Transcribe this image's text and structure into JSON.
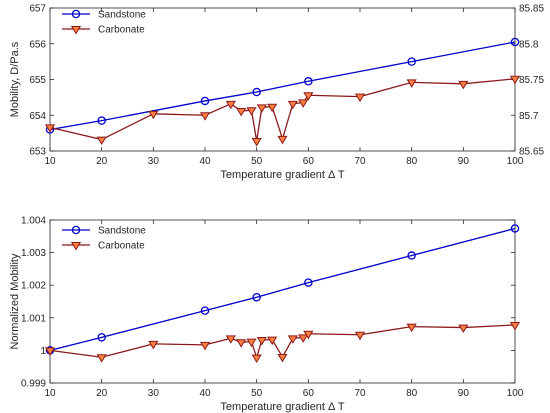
{
  "chart_data": [
    {
      "type": "line",
      "title": "",
      "xlabel": "Temperature gradient Δ T",
      "ylabel": "Mobility, D/Pa.s",
      "xlim": [
        10,
        100
      ],
      "ylim": [
        653,
        657
      ],
      "y2lim": [
        85.65,
        85.85
      ],
      "xticks": [
        "10",
        "20",
        "30",
        "40",
        "50",
        "60",
        "70",
        "80",
        "90",
        "100"
      ],
      "yticks": [
        "653",
        "654",
        "655",
        "656",
        "657"
      ],
      "y2ticks": [
        "85.65",
        "85.7",
        "85.75",
        "85.8",
        "85.85"
      ],
      "legend_position": "top-left",
      "series": [
        {
          "name": "Sandstone",
          "axis": "left",
          "color": "#0000cc",
          "marker": "circle",
          "x": [
            10,
            20,
            40,
            50,
            60,
            80,
            100
          ],
          "y": [
            653.6,
            653.85,
            654.4,
            654.65,
            654.95,
            655.5,
            656.05
          ]
        },
        {
          "name": "Carbonate",
          "axis": "right",
          "color": "#8b1a1a",
          "marker_fill": "#ff8040",
          "marker": "triangle-down",
          "x": [
            10,
            20,
            30,
            40,
            45,
            47,
            49,
            50,
            51,
            53,
            55,
            57,
            59,
            60,
            70,
            80,
            90,
            100
          ],
          "y": [
            85.683,
            85.666,
            85.702,
            85.7,
            85.716,
            85.706,
            85.707,
            85.664,
            85.711,
            85.712,
            85.667,
            85.716,
            85.718,
            85.728,
            85.726,
            85.746,
            85.744,
            85.751
          ]
        }
      ]
    },
    {
      "type": "line",
      "title": "",
      "xlabel": "Temperature gradient Δ T",
      "ylabel": "Normalized Mobility",
      "xlim": [
        10,
        100
      ],
      "ylim": [
        0.999,
        1.004
      ],
      "xticks": [
        "10",
        "20",
        "30",
        "40",
        "50",
        "60",
        "70",
        "80",
        "90",
        "100"
      ],
      "yticks": [
        "0.999",
        "1",
        "1.001",
        "1.002",
        "1.003",
        "1.004"
      ],
      "legend_position": "top-left",
      "series": [
        {
          "name": "Sandstone",
          "color": "#0000cc",
          "marker": "circle",
          "x": [
            10,
            20,
            40,
            50,
            60,
            80,
            100
          ],
          "y": [
            1.0,
            1.0004,
            1.00122,
            1.00163,
            1.00208,
            1.00291,
            1.00374
          ]
        },
        {
          "name": "Carbonate",
          "color": "#8b1a1a",
          "marker_fill": "#ff8040",
          "marker": "triangle-down",
          "x": [
            10,
            20,
            30,
            40,
            45,
            47,
            49,
            50,
            51,
            53,
            55,
            57,
            59,
            60,
            70,
            80,
            90,
            100
          ],
          "y": [
            1.0,
            0.99979,
            1.0002,
            1.00017,
            1.00037,
            1.00025,
            1.00027,
            0.99978,
            1.00032,
            1.00033,
            0.9998,
            1.00037,
            1.0004,
            1.00051,
            1.00048,
            1.00073,
            1.0007,
            1.00078
          ]
        }
      ]
    }
  ]
}
